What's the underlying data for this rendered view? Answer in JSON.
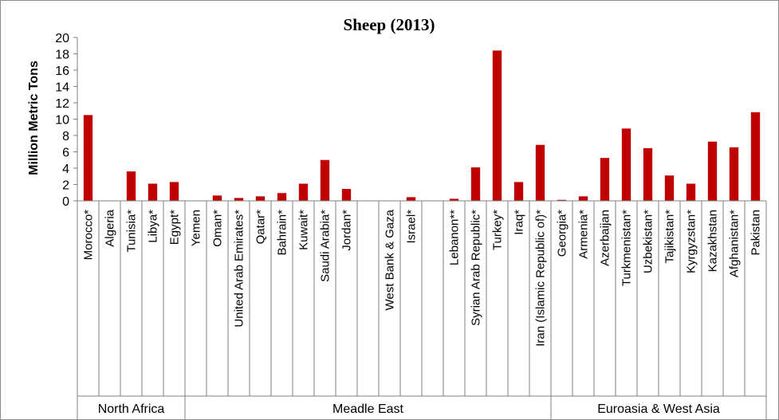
{
  "chart_data": {
    "type": "bar",
    "title": "Sheep (2013)",
    "ylabel": "Million Metric Tons",
    "xlabel": "",
    "ylim": [
      0,
      20
    ],
    "yticks": [
      0,
      2,
      4,
      6,
      8,
      10,
      12,
      14,
      16,
      18,
      20
    ],
    "grid": false,
    "legend": "none",
    "bar_color": "#c00000",
    "categories": [
      "Morocco*",
      "Algeria",
      "Tunisia*",
      "Libya*",
      "Egypt*",
      "Yemen",
      "Oman*",
      "United Arab Emirates*",
      "Qatar*",
      "Bahrain*",
      "Kuwait*",
      "Saudi Arabia*",
      "Jordan*",
      "",
      "West Bank & Gaza",
      "Israel*",
      "",
      "Lebanon**",
      "Syrian Arab Republic*",
      "Turkey*",
      "Iraq*",
      "Iran (Islamic Republic of)*",
      "Georgia*",
      "Armenia*",
      "Azerbaijan",
      "Turkmenistan*",
      "Uzbekistan*",
      "Tajikistan*",
      "Kyrgyzstan*",
      "Kazakhstan",
      "Afghanistan*",
      "Pakistan"
    ],
    "values": [
      10.5,
      0,
      3.6,
      2.1,
      2.3,
      0,
      0.65,
      0.35,
      0.55,
      0.95,
      2.1,
      5.0,
      1.45,
      0,
      0,
      0.45,
      0,
      0.25,
      4.1,
      18.4,
      2.3,
      6.85,
      0.12,
      0.55,
      5.25,
      8.85,
      6.45,
      3.1,
      2.1,
      7.25,
      6.55,
      10.85
    ],
    "groups": [
      {
        "name": "North Africa",
        "start": 0,
        "end": 4
      },
      {
        "name": "Meadle East",
        "start": 5,
        "end": 21
      },
      {
        "name": "Euroasia & West Asia",
        "start": 22,
        "end": 31
      }
    ]
  }
}
